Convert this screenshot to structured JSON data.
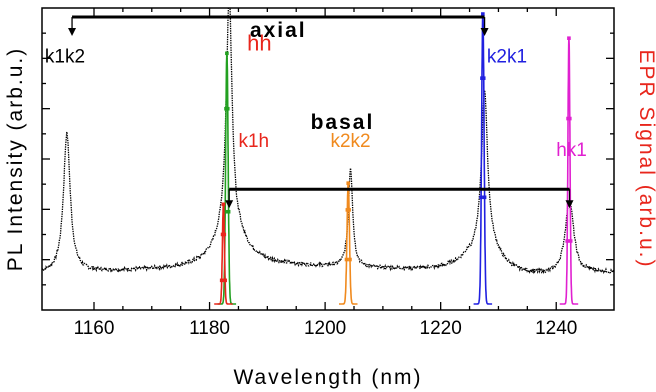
{
  "chart_data": {
    "type": "line",
    "xlabel": "Wavelength (nm)",
    "ylabel_left": "PL Intensity (arb.u.)",
    "ylabel_right": "EPR Signal (arb.u.)",
    "xlim": [
      1151,
      1250
    ],
    "x_ticks": [
      1160,
      1180,
      1200,
      1220,
      1240
    ],
    "ylim": [
      0,
      1
    ],
    "grid": false,
    "pl_spectrum": {
      "color": "#000000",
      "baseline": 0.12,
      "peaks": [
        {
          "center": 1155.3,
          "height": 0.46,
          "width": 0.7
        },
        {
          "center": 1183.4,
          "height": 0.78,
          "width": 0.6
        },
        {
          "center": 1183.4,
          "height": 0.13,
          "width": 3.0
        },
        {
          "center": 1204.4,
          "height": 0.33,
          "width": 0.45
        },
        {
          "center": 1227.6,
          "height": 0.5,
          "width": 0.6
        },
        {
          "center": 1227.6,
          "height": 0.12,
          "width": 3.0
        },
        {
          "center": 1242.3,
          "height": 0.25,
          "width": 0.9
        }
      ]
    },
    "epr_series": [
      {
        "name": "hh",
        "color": "#22a020",
        "center": 1183.0,
        "height": 0.85,
        "width": 0.3
      },
      {
        "name": "k1h",
        "color": "#e8261c",
        "center": 1182.4,
        "height": 0.35,
        "width": 0.25
      },
      {
        "name": "k2k2",
        "color": "#f08a1e",
        "center": 1204.0,
        "height": 0.42,
        "width": 0.3
      },
      {
        "name": "k2k1",
        "color": "#2020e0",
        "center": 1227.3,
        "height": 0.98,
        "width": 0.3
      },
      {
        "name": "hk1",
        "color": "#e020d0",
        "center": 1242.2,
        "height": 0.9,
        "width": 0.25
      }
    ],
    "annotations": {
      "axial": {
        "label": "axial",
        "from": 1156.2,
        "to": 1227.6,
        "level": 0.97,
        "color": "#000000"
      },
      "basal": {
        "label": "basal",
        "from": 1183.4,
        "to": 1242.3,
        "level": 0.4,
        "color": "#000000"
      },
      "labels": [
        {
          "text": "k1k2",
          "x": 1155.3,
          "y": 0.82,
          "color": "#000000"
        },
        {
          "text": "hh",
          "x": 1186.5,
          "y": 0.86,
          "color": "#e8261c"
        },
        {
          "text": "k2k1",
          "x": 1228.0,
          "y": 0.82,
          "color": "#2020e0"
        },
        {
          "text": "k1h",
          "x": 1185.0,
          "y": 0.54,
          "color": "#e8261c"
        },
        {
          "text": "k2k2",
          "x": 1204.4,
          "y": 0.54,
          "color": "#f08a1e"
        },
        {
          "text": "hk1",
          "x": 1240.0,
          "y": 0.51,
          "color": "#e020d0"
        }
      ]
    }
  }
}
